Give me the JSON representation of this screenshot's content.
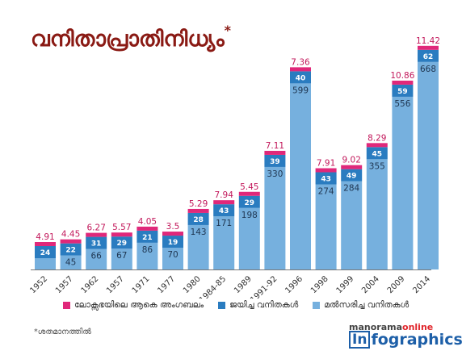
{
  "title": "വനിതാപ്രാതിനിധ്യം",
  "title_mark": "*",
  "legend": {
    "total_label": "ലോക്സഭയിലെ ആകെ അംഗബലം",
    "won_label": "ജയിച്ച വനിതകൾ",
    "contested_label": "മൽസരിച്ച വനിതകൾ"
  },
  "footnote": "*ശതമാനത്തിൽ",
  "brand": {
    "top_main": "manorama",
    "top_accent": "online",
    "bottom_box": "In",
    "bottom_text": "fographics"
  },
  "colors": {
    "total": "#e0287a",
    "won": "#2a7cc0",
    "contested": "#76b0de",
    "percent_label": "#c2185b",
    "title": "#8a1a14"
  },
  "chart_data": {
    "type": "bar",
    "title": "വനിതാപ്രാതിനിധ്യം",
    "categories": [
      "1952",
      "1957",
      "1962",
      "1957",
      "1971",
      "1977",
      "1980",
      "1984-85",
      "1989",
      "1991-92",
      "1996",
      "1998",
      "1999",
      "2004",
      "2009",
      "2014"
    ],
    "series": [
      {
        "name": "ലോക്സഭയിലെ ആകെ അംഗബലം",
        "values": [
          4.91,
          4.45,
          6.27,
          5.57,
          4.05,
          3.5,
          5.29,
          7.94,
          5.45,
          7.11,
          7.36,
          7.91,
          9.02,
          8.29,
          10.86,
          11.42
        ]
      },
      {
        "name": "ജയിച്ച വനിതകൾ",
        "values": [
          24,
          22,
          31,
          29,
          21,
          19,
          28,
          43,
          29,
          39,
          40,
          43,
          49,
          45,
          59,
          62
        ]
      },
      {
        "name": "മൽസരിച്ച വനിതകൾ",
        "values": [
          null,
          45,
          66,
          67,
          86,
          70,
          143,
          171,
          198,
          330,
          599,
          274,
          284,
          355,
          556,
          668
        ]
      }
    ]
  }
}
